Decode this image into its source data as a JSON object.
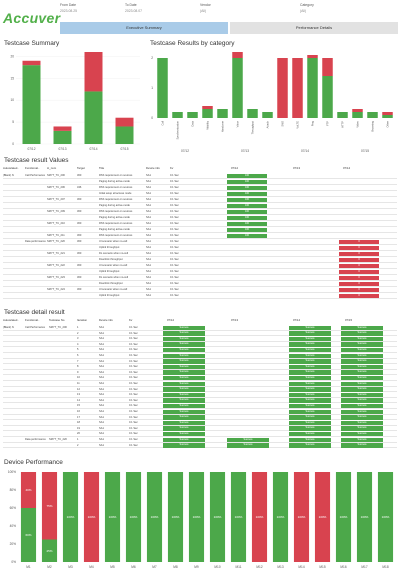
{
  "logo": "Accuver",
  "filters": [
    {
      "label": "From Date",
      "value": "2023.08.25"
    },
    {
      "label": "To Date",
      "value": "2023.08.07"
    },
    {
      "label": "Vendor",
      "value": "(All)"
    },
    {
      "label": "Category",
      "value": "(All)"
    }
  ],
  "tabs": [
    {
      "label": "Executive Summary"
    },
    {
      "label": "Performance Details"
    }
  ],
  "colors": {
    "pass": "#4ca84a",
    "fail": "#d8434f",
    "tab_active": "#a9cbe8",
    "tab_inactive": "#e2e2e2",
    "logo": "#52b04a"
  },
  "summary": {
    "title": "Testcase Summary",
    "yticks": [
      "0",
      "5",
      "10",
      "15",
      "20"
    ],
    "chart_data": {
      "type": "bar",
      "categories": [
        "07/12",
        "07/13",
        "07/14",
        "07/15"
      ],
      "series": [
        {
          "name": "Pass",
          "values": [
            18,
            3,
            12,
            4
          ]
        },
        {
          "name": "Fail",
          "values": [
            1,
            1,
            9,
            2
          ]
        }
      ],
      "ylim": [
        0,
        21
      ]
    }
  },
  "category": {
    "title": "Testcase Results by category",
    "yticks": [
      "0",
      "1",
      "2"
    ],
    "groups": [
      "07/12",
      "07/13",
      "07/14",
      "07/15"
    ],
    "chart_data": {
      "type": "bar",
      "categories": [
        "Call",
        "Synchronization",
        "Data",
        "Mobility",
        "Handover",
        "Voice",
        "Throughput",
        "Attach",
        "SMS",
        "VoLTE",
        "Ping",
        "FTP",
        "HTTP",
        "Video",
        "Browsing",
        "Other"
      ],
      "series": [
        {
          "name": "Pass",
          "values": [
            2.0,
            0.2,
            0.2,
            0.3,
            0.3,
            2.0,
            0.3,
            0.2,
            0,
            0,
            2.0,
            1.4,
            0.2,
            0.2,
            0.2,
            0.1
          ]
        },
        {
          "name": "Fail",
          "values": [
            0,
            0,
            0,
            0.1,
            0,
            0.2,
            0,
            0,
            2.0,
            2.0,
            0.1,
            0.6,
            0,
            0.1,
            0,
            0.1
          ]
        }
      ],
      "ylim": [
        0,
        2.2
      ]
    }
  },
  "values_table": {
    "title": "Testcase result Values",
    "headers": [
      "Autorelated..",
      "Functional..",
      "tc_num",
      "Target",
      "Title",
      "Device info",
      "Kv",
      "07/12",
      "07/13",
      "07/14"
    ],
    "rows": [
      {
        "a": "(Blank) N",
        "f": "Call Performance",
        "n": "SMYT_TC_200",
        "t": "300",
        "ti": "RSS requirement on sources",
        "d": "SA1",
        "k": "0.1 Sec",
        "r1": "100",
        "r2": "",
        "r3": ""
      },
      {
        "a": "",
        "f": "",
        "n": "",
        "t": "",
        "ti": "Paging during active-mode",
        "d": "SA1",
        "k": "0.1 Sec",
        "r1": "100",
        "r2": "",
        "r3": ""
      },
      {
        "a": "",
        "f": "",
        "n": "SMYT_TC_206",
        "t": "346",
        "ti": "RSS requirement on sources",
        "d": "SA1",
        "k": "0.1 Sec",
        "r1": "100",
        "r2": "",
        "r3": ""
      },
      {
        "a": "",
        "f": "",
        "n": "",
        "t": "",
        "ti": "Initial setup all access mode",
        "d": "SA1",
        "k": "0.1 Sec",
        "r1": "100",
        "r2": "",
        "r3": ""
      },
      {
        "a": "",
        "f": "",
        "n": "SMYT_TC_207",
        "t": "300",
        "ti": "RSS requirement on sources",
        "d": "SA1",
        "k": "0.1 Sec",
        "r1": "100",
        "r2": "",
        "r3": ""
      },
      {
        "a": "",
        "f": "",
        "n": "",
        "t": "",
        "ti": "Paging during active-mode",
        "d": "SA1",
        "k": "0.1 Sec",
        "r1": "100",
        "r2": "",
        "r3": ""
      },
      {
        "a": "",
        "f": "",
        "n": "SMYT_TC_209",
        "t": "300",
        "ti": "RSS requirement on sources",
        "d": "SA1",
        "k": "0.1 Sec",
        "r1": "100",
        "r2": "",
        "r3": ""
      },
      {
        "a": "",
        "f": "",
        "n": "",
        "t": "",
        "ti": "Paging during active-mode",
        "d": "SA1",
        "k": "0.1 Sec",
        "r1": "100",
        "r2": "",
        "r3": ""
      },
      {
        "a": "",
        "f": "",
        "n": "SMYT_TC_210",
        "t": "300",
        "ti": "RSS requirement on sources",
        "d": "SA1",
        "k": "0.1 Sec",
        "r1": "100",
        "r2": "",
        "r3": ""
      },
      {
        "a": "",
        "f": "",
        "n": "",
        "t": "",
        "ti": "Paging during active-mode",
        "d": "SA1",
        "k": "0.1 Sec",
        "r1": "100",
        "r2": "",
        "r3": ""
      },
      {
        "a": "",
        "f": "",
        "n": "SMYT_TC_211",
        "t": "300",
        "ti": "RSS requirement on sources",
        "d": "SA1",
        "k": "0.1 Sec",
        "r1": "100",
        "r2": "",
        "r3": ""
      },
      {
        "a": "",
        "f": "Data performance",
        "n": "SMYT_TC_220",
        "t": "300",
        "ti": "Ul scenario when no-cell",
        "d": "SA1",
        "k": "0.1 Sec",
        "r1": "",
        "r2": "",
        "r3": "0"
      },
      {
        "a": "",
        "f": "",
        "n": "",
        "t": "",
        "ti": "Uplink throughput",
        "d": "SA1",
        "k": "0.1 Sec",
        "r1": "",
        "r2": "",
        "r3": "0"
      },
      {
        "a": "",
        "f": "",
        "n": "SMYT_TC_221",
        "t": "300",
        "ti": "DL scenario when no-cell",
        "d": "SA1",
        "k": "0.1 Sec",
        "r1": "",
        "r2": "",
        "r3": "0"
      },
      {
        "a": "",
        "f": "",
        "n": "",
        "t": "",
        "ti": "Downlink throughput",
        "d": "SA1",
        "k": "0.1 Sec",
        "r1": "",
        "r2": "",
        "r3": "0"
      },
      {
        "a": "",
        "f": "",
        "n": "SMYT_TC_222",
        "t": "300",
        "ti": "Ul scenario when no-cell",
        "d": "SA1",
        "k": "0.1 Sec",
        "r1": "",
        "r2": "",
        "r3": "0"
      },
      {
        "a": "",
        "f": "",
        "n": "",
        "t": "",
        "ti": "Uplink throughput",
        "d": "SA1",
        "k": "0.1 Sec",
        "r1": "",
        "r2": "",
        "r3": "0"
      },
      {
        "a": "",
        "f": "",
        "n": "SMYT_TC_223",
        "t": "300",
        "ti": "DL scenario when no-cell",
        "d": "SA1",
        "k": "0.1 Sec",
        "r1": "",
        "r2": "",
        "r3": "0"
      },
      {
        "a": "",
        "f": "",
        "n": "",
        "t": "",
        "ti": "Downlink throughput",
        "d": "SA1",
        "k": "0.1 Sec",
        "r1": "",
        "r2": "",
        "r3": "0"
      },
      {
        "a": "",
        "f": "",
        "n": "SMYT_TC_224",
        "t": "300",
        "ti": "Ul scenario when no-cell",
        "d": "SA1",
        "k": "0.1 Sec",
        "r1": "",
        "r2": "",
        "r3": "0"
      },
      {
        "a": "",
        "f": "",
        "n": "",
        "t": "",
        "ti": "Uplink throughput",
        "d": "SA1",
        "k": "0.1 Sec",
        "r1": "",
        "r2": "",
        "r3": "0"
      }
    ]
  },
  "detail_table": {
    "title": "Testcase detail result",
    "headers": [
      "Autorelated..",
      "Functional..",
      "Testcase No",
      "Iteration",
      "Device info",
      "Kv",
      "07/12",
      "07/13",
      "07/14",
      "07/15"
    ],
    "rows": [
      {
        "a": "(Blank) N",
        "f": "Call Performance",
        "n": "SMYT_TC_200",
        "i": "1",
        "d": "SA1",
        "k": "0.1 Sec",
        "c": [
          "Success",
          "",
          "Success",
          "Success"
        ]
      },
      {
        "a": "",
        "f": "",
        "n": "",
        "i": "2",
        "d": "SA1",
        "k": "0.1 Sec",
        "c": [
          "Success",
          "",
          "Success",
          "Success"
        ]
      },
      {
        "a": "",
        "f": "",
        "n": "",
        "i": "3",
        "d": "SA1",
        "k": "0.1 Sec",
        "c": [
          "Success",
          "",
          "Success",
          "Success"
        ]
      },
      {
        "a": "",
        "f": "",
        "n": "",
        "i": "4",
        "d": "SA1",
        "k": "0.1 Sec",
        "c": [
          "Success",
          "",
          "Success",
          "Success"
        ]
      },
      {
        "a": "",
        "f": "",
        "n": "",
        "i": "5",
        "d": "SA1",
        "k": "0.1 Sec",
        "c": [
          "Success",
          "",
          "Success",
          "Success"
        ]
      },
      {
        "a": "",
        "f": "",
        "n": "",
        "i": "6",
        "d": "SA1",
        "k": "0.1 Sec",
        "c": [
          "Success",
          "",
          "Success",
          "Success"
        ]
      },
      {
        "a": "",
        "f": "",
        "n": "",
        "i": "7",
        "d": "SA1",
        "k": "0.1 Sec",
        "c": [
          "Success",
          "",
          "Success",
          "Success"
        ]
      },
      {
        "a": "",
        "f": "",
        "n": "",
        "i": "8",
        "d": "SA1",
        "k": "0.1 Sec",
        "c": [
          "Success",
          "",
          "Success",
          "Success"
        ]
      },
      {
        "a": "",
        "f": "",
        "n": "",
        "i": "9",
        "d": "SA1",
        "k": "0.1 Sec",
        "c": [
          "Success",
          "",
          "Success",
          "Success"
        ]
      },
      {
        "a": "",
        "f": "",
        "n": "",
        "i": "10",
        "d": "SA1",
        "k": "0.1 Sec",
        "c": [
          "Success",
          "",
          "Success",
          "Success"
        ]
      },
      {
        "a": "",
        "f": "",
        "n": "",
        "i": "11",
        "d": "SA1",
        "k": "0.1 Sec",
        "c": [
          "Success",
          "",
          "Success",
          "Success"
        ]
      },
      {
        "a": "",
        "f": "",
        "n": "",
        "i": "12",
        "d": "SA1",
        "k": "0.1 Sec",
        "c": [
          "Success",
          "",
          "Success",
          "Success"
        ]
      },
      {
        "a": "",
        "f": "",
        "n": "",
        "i": "13",
        "d": "SA1",
        "k": "0.1 Sec",
        "c": [
          "Success",
          "",
          "Success",
          "Success"
        ]
      },
      {
        "a": "",
        "f": "",
        "n": "",
        "i": "14",
        "d": "SA1",
        "k": "0.1 Sec",
        "c": [
          "Success",
          "",
          "Success",
          "Success"
        ]
      },
      {
        "a": "",
        "f": "",
        "n": "",
        "i": "15",
        "d": "SA1",
        "k": "0.1 Sec",
        "c": [
          "Success",
          "",
          "Success",
          "Success"
        ]
      },
      {
        "a": "",
        "f": "",
        "n": "",
        "i": "16",
        "d": "SA1",
        "k": "0.1 Sec",
        "c": [
          "Success",
          "",
          "Success",
          "Success"
        ]
      },
      {
        "a": "",
        "f": "",
        "n": "",
        "i": "17",
        "d": "SA1",
        "k": "0.1 Sec",
        "c": [
          "Success",
          "",
          "Success",
          "Success"
        ]
      },
      {
        "a": "",
        "f": "",
        "n": "",
        "i": "18",
        "d": "SA1",
        "k": "0.1 Sec",
        "c": [
          "Success",
          "",
          "Success",
          "Success"
        ]
      },
      {
        "a": "",
        "f": "",
        "n": "",
        "i": "19",
        "d": "SA1",
        "k": "0.1 Sec",
        "c": [
          "Success",
          "",
          "Success",
          "Success"
        ]
      },
      {
        "a": "",
        "f": "",
        "n": "",
        "i": "20",
        "d": "SA1",
        "k": "0.1 Sec",
        "c": [
          "Success",
          "",
          "Success",
          "Success"
        ]
      },
      {
        "a": "",
        "f": "Data performance",
        "n": "SMYT_TC_220",
        "i": "1",
        "d": "SA1",
        "k": "0.1 Sec",
        "c": [
          "Success",
          "Success",
          "Success",
          "Success"
        ]
      },
      {
        "a": "",
        "f": "",
        "n": "",
        "i": "2",
        "d": "SA1",
        "k": "0.1 Sec",
        "c": [
          "Success",
          "Success",
          "Success",
          "Success"
        ]
      }
    ]
  },
  "device": {
    "title": "Device Performance",
    "yticks": [
      "0%",
      "20%",
      "40%",
      "60%",
      "80%",
      "100%"
    ],
    "chart_data": {
      "type": "bar",
      "categories": [
        "M1",
        "M2",
        "M3",
        "M4",
        "M5",
        "M6",
        "M7",
        "M8",
        "M9",
        "M10",
        "M11",
        "M12",
        "M13",
        "M14",
        "M15",
        "M16",
        "M17",
        "M18"
      ],
      "series": [
        {
          "name": "Pass",
          "values": [
            60,
            25,
            100,
            0,
            100,
            100,
            100,
            100,
            100,
            100,
            100,
            0,
            100,
            0,
            0,
            100,
            100,
            100
          ]
        },
        {
          "name": "Fail",
          "values": [
            40,
            75,
            0,
            100,
            0,
            0,
            0,
            0,
            0,
            0,
            0,
            100,
            0,
            100,
            100,
            0,
            0,
            0
          ]
        }
      ],
      "ylim": [
        0,
        100
      ]
    }
  }
}
